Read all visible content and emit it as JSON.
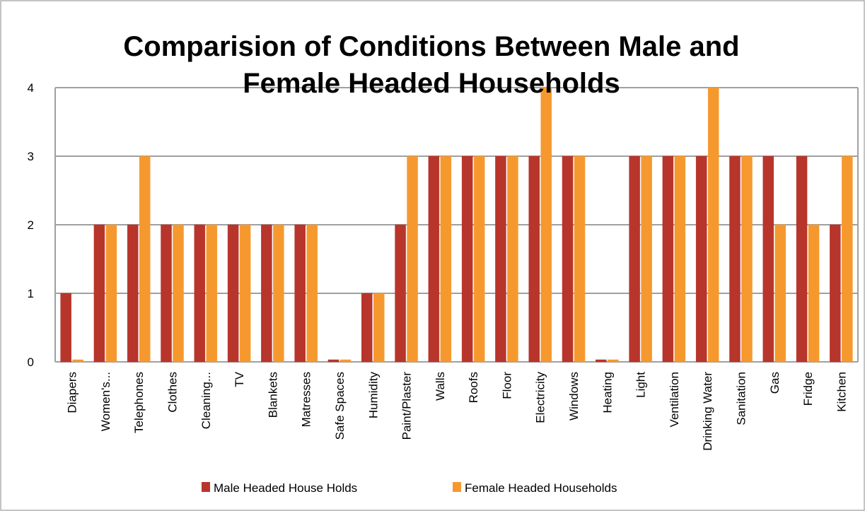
{
  "chart_data": {
    "type": "bar",
    "title": "Comparision of Conditions Between Male and Female Headed Households",
    "categories": [
      "Diapers",
      "Women's...",
      "Telephones",
      "Clothes",
      "Cleaning...",
      "TV",
      "Blankets",
      "Matresses",
      "Safe Spaces",
      "Humidity",
      "Paint/Plaster",
      "Walls",
      "Roofs",
      "Floor",
      "Electricity",
      "Windows",
      "Heating",
      "Light",
      "Ventilation",
      "Drinking Water",
      "Sanitation",
      "Gas",
      "Fridge",
      "Kitchen"
    ],
    "series": [
      {
        "name": "Male Headed House Holds",
        "color": "#b8352c",
        "values": [
          1,
          2,
          2,
          2,
          2,
          2,
          2,
          2,
          0,
          1,
          2,
          3,
          3,
          3,
          3,
          3,
          0,
          3,
          3,
          3,
          3,
          3,
          3,
          2
        ]
      },
      {
        "name": "Female Headed Households",
        "color": "#f5992f",
        "values": [
          0,
          2,
          3,
          2,
          2,
          2,
          2,
          2,
          0,
          1,
          3,
          3,
          3,
          3,
          4,
          3,
          0,
          3,
          3,
          4,
          3,
          2,
          2,
          3
        ]
      }
    ],
    "ylim": [
      0,
      4
    ],
    "yticks": [
      0,
      1,
      2,
      3,
      4
    ],
    "grid": true,
    "legend": "bottom"
  }
}
